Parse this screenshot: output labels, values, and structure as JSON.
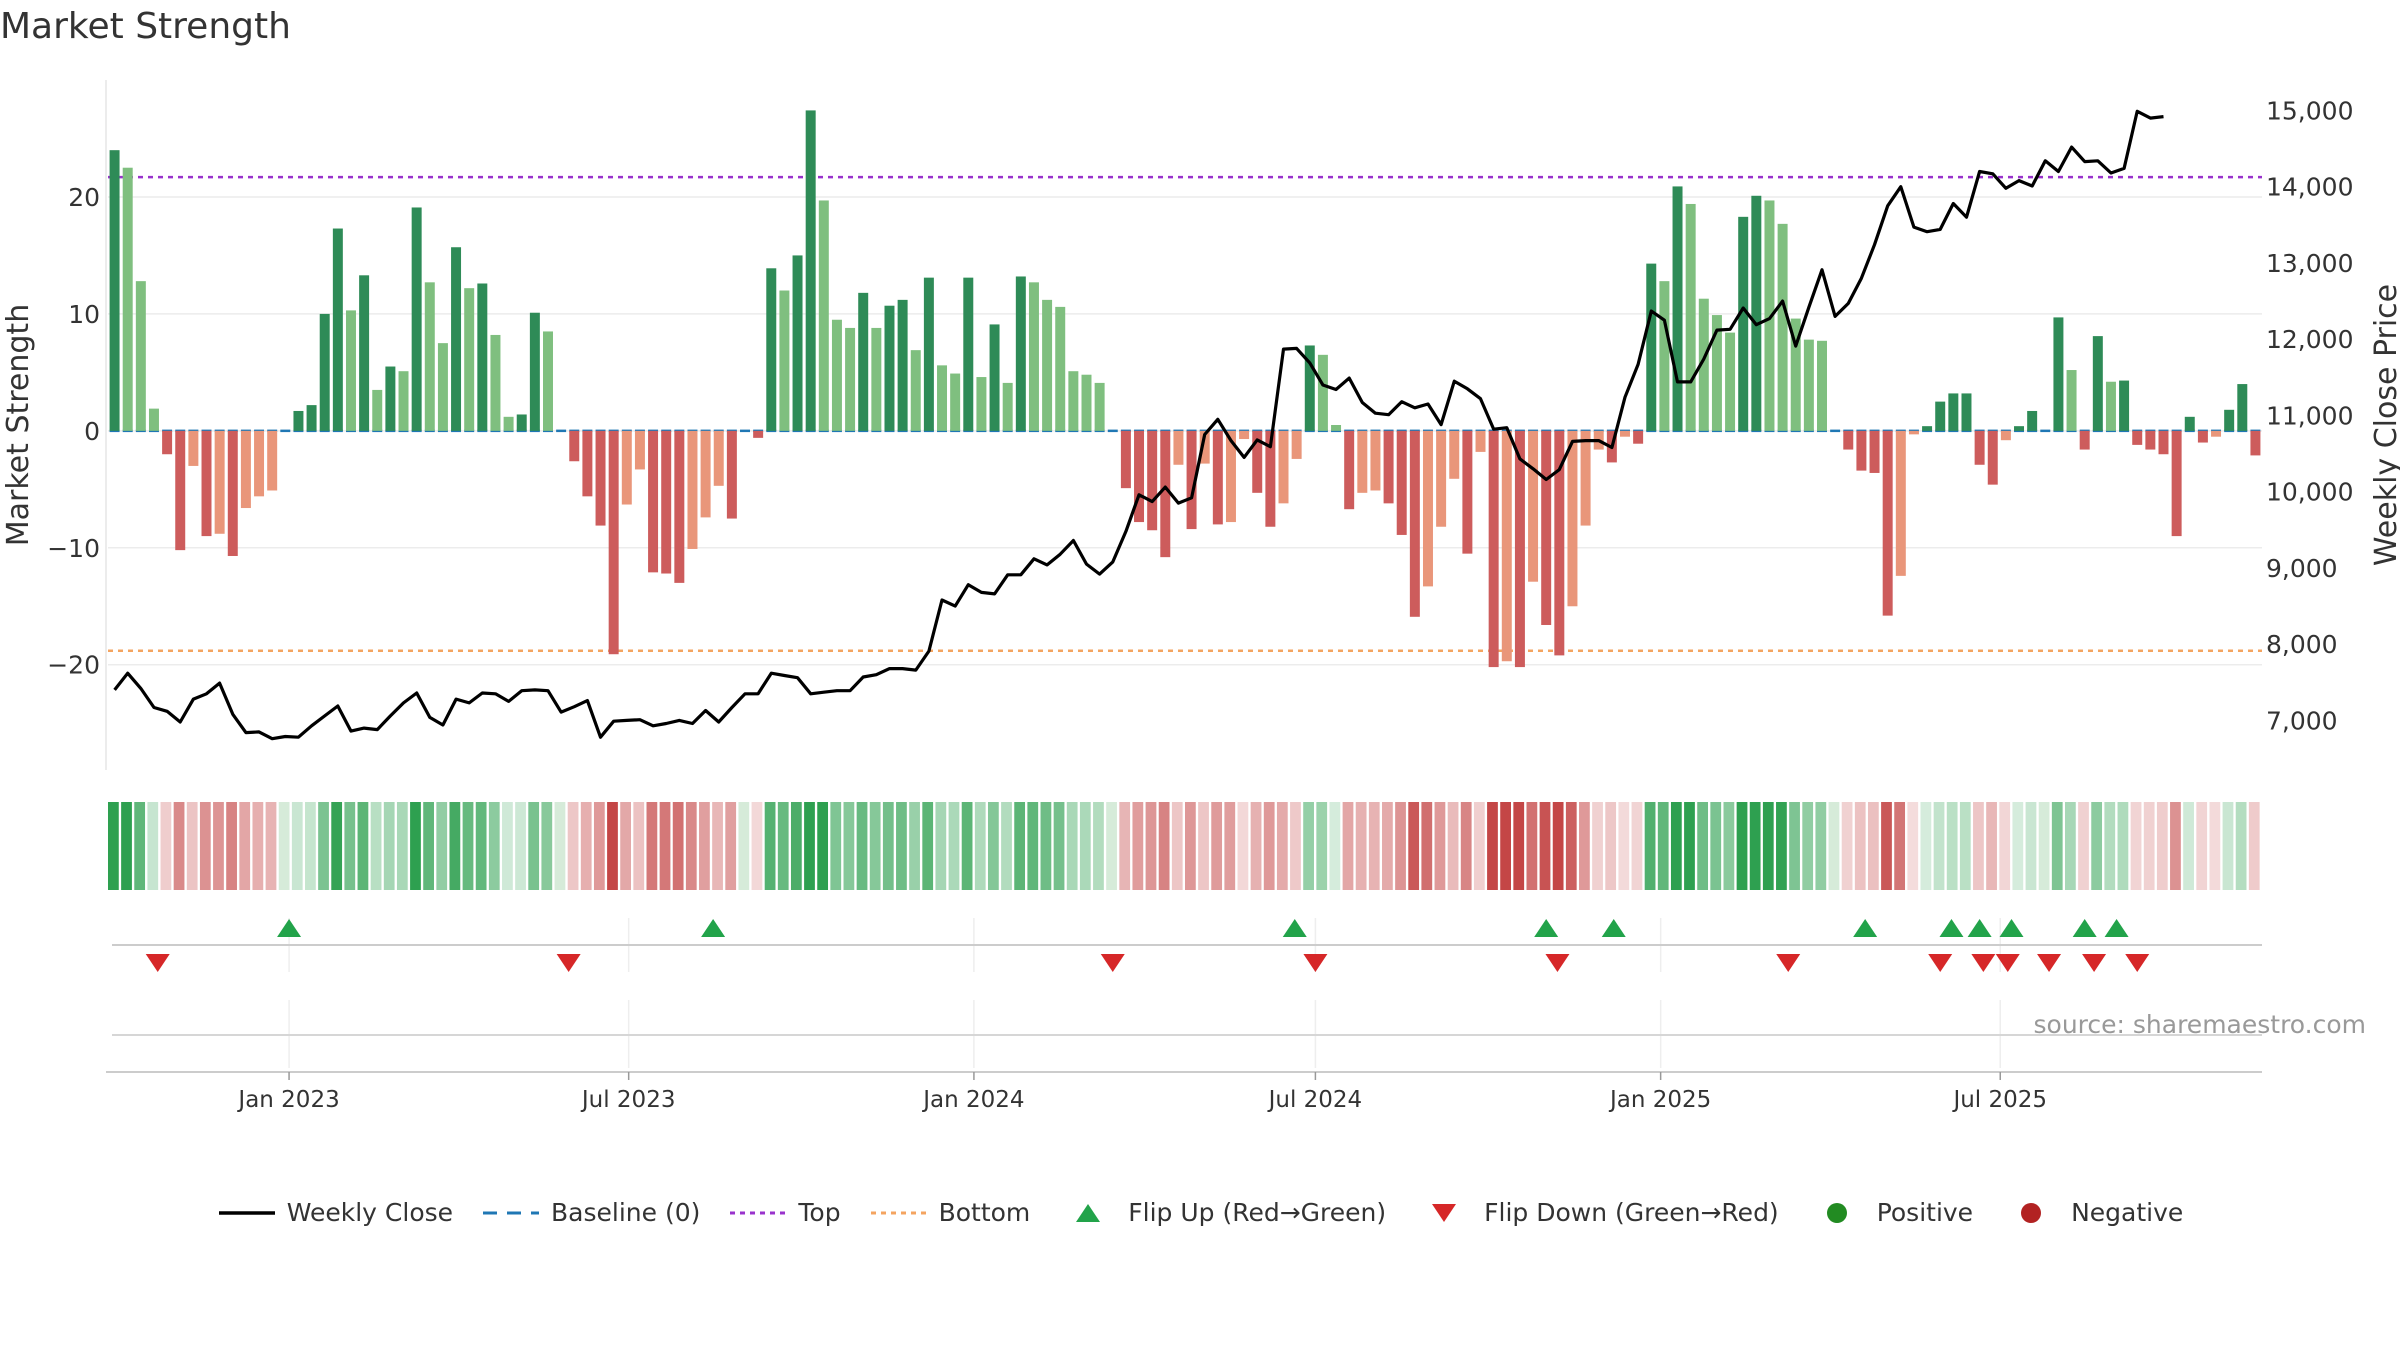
{
  "title": "Market Strength",
  "source": "source: sharemaestro.com",
  "colors": {
    "pos_strong": "#2e8b57",
    "pos_weak": "#7fbf7f",
    "neg_strong": "#cd5c5c",
    "neg_weak": "#e9967a",
    "price": "#000000",
    "baseline": "#1f77b4",
    "top": "#9932cc",
    "bottom": "#f4a460",
    "flip_up": "#22a34a",
    "flip_down": "#d62728",
    "positive": "#228b22",
    "negative": "#b22222"
  },
  "legend": [
    {
      "key": "close",
      "label": "Weekly Close"
    },
    {
      "key": "baseline",
      "label": "Baseline (0)"
    },
    {
      "key": "top",
      "label": "Top"
    },
    {
      "key": "bottom",
      "label": "Bottom"
    },
    {
      "key": "flipup",
      "label": "Flip Up (Red→Green)"
    },
    {
      "key": "flipdown",
      "label": "Flip Down (Green→Red)"
    },
    {
      "key": "positive",
      "label": "Positive"
    },
    {
      "key": "negative",
      "label": "Negative"
    }
  ],
  "chart_data": {
    "type": "bar",
    "title": "Market Strength",
    "ylabel_left": "Market Strength",
    "ylabel_right": "Weekly Close Price",
    "left_ticks": [
      20,
      10,
      0,
      -10,
      -20
    ],
    "left_tick_labels": [
      "20",
      "10",
      "0",
      "−10",
      "−20"
    ],
    "left_ylim": [
      -29,
      30
    ],
    "right_ticks": [
      15000,
      14000,
      13000,
      12000,
      11000,
      10000,
      9000,
      8000,
      7000
    ],
    "right_tick_labels": [
      "15,000",
      "14,000",
      "13,000",
      "12,000",
      "11,000",
      "10,000",
      "9,000",
      "8,000",
      "7,000"
    ],
    "right_ylim": [
      6350,
      15400
    ],
    "x_ticks": [
      "2023-01-01",
      "2023-07-01",
      "2024-01-01",
      "2024-07-01",
      "2025-01-01",
      "2025-07-01"
    ],
    "x_tick_labels": [
      "Jan 2023",
      "Jul 2023",
      "Jan 2024",
      "Jul 2024",
      "Jan 2025",
      "Jul 2025"
    ],
    "start_date": "2022-09-30",
    "top_line": 21.7,
    "bottom_line": -18.8,
    "strength": [
      24,
      22.5,
      12.8,
      1.9,
      -2,
      -10.2,
      -3,
      -9,
      -8.8,
      -10.7,
      -6.6,
      -5.6,
      -5.1,
      0,
      1.7,
      2.2,
      10,
      17.3,
      10.3,
      13.3,
      3.5,
      5.5,
      5.1,
      19.1,
      12.7,
      7.5,
      15.7,
      12.2,
      12.6,
      8.2,
      1.2,
      1.4,
      10.1,
      8.5,
      0,
      -2.6,
      -5.6,
      -8.1,
      -19.1,
      -6.3,
      -3.3,
      -12.1,
      -12.2,
      -13,
      -10.1,
      -7.4,
      -4.7,
      -7.5,
      0,
      -0.6,
      13.9,
      12,
      15,
      27.4,
      19.7,
      9.5,
      8.8,
      11.8,
      8.8,
      10.7,
      11.2,
      6.9,
      13.1,
      5.6,
      4.9,
      13.1,
      4.6,
      9.1,
      4.1,
      13.2,
      12.7,
      11.2,
      10.6,
      5.1,
      4.8,
      4.1,
      0,
      -4.9,
      -7.8,
      -8.5,
      -10.8,
      -2.9,
      -8.4,
      -2.8,
      -8,
      -7.8,
      -0.7,
      -5.3,
      -8.2,
      -6.2,
      -2.4,
      7.3,
      6.5,
      0.5,
      -6.7,
      -5.3,
      -5.1,
      -6.2,
      -8.9,
      -15.9,
      -13.3,
      -8.2,
      -4.1,
      -10.5,
      -1.8,
      -20.2,
      -19.7,
      -20.2,
      -12.9,
      -16.6,
      -19.2,
      -15,
      -8.1,
      -1.6,
      -2.7,
      -0.5,
      -1.1,
      14.3,
      12.8,
      20.9,
      19.4,
      11.3,
      9.9,
      8.4,
      18.3,
      20.1,
      19.7,
      17.7,
      9.6,
      7.8,
      7.7,
      0,
      -1.6,
      -3.4,
      -3.6,
      -15.8,
      -12.4,
      -0.3,
      0.4,
      2.5,
      3.2,
      3.2,
      -2.9,
      -4.6,
      -0.8,
      0.4,
      1.7,
      0,
      9.7,
      5.2,
      -1.6,
      8.1,
      4.2,
      4.3,
      -1.2,
      -1.6,
      -2,
      -9,
      1.2,
      -1,
      -0.5,
      1.8,
      4,
      -2.1
    ],
    "price": [
      7400,
      7620,
      7420,
      7170,
      7120,
      6980,
      7280,
      7350,
      7490,
      7080,
      6840,
      6850,
      6760,
      6790,
      6780,
      6930,
      7060,
      7190,
      6860,
      6900,
      6880,
      7060,
      7230,
      7360,
      7040,
      6940,
      7280,
      7230,
      7360,
      7350,
      7250,
      7390,
      7400,
      7390,
      7110,
      7180,
      7260,
      6780,
      6990,
      7000,
      7010,
      6930,
      6960,
      7000,
      6960,
      7130,
      6980,
      7170,
      7350,
      7350,
      7620,
      7590,
      7560,
      7350,
      7370,
      7390,
      7390,
      7570,
      7600,
      7680,
      7680,
      7660,
      7910,
      8580,
      8500,
      8780,
      8680,
      8660,
      8910,
      8910,
      9120,
      9040,
      9180,
      9360,
      9050,
      8920,
      9080,
      9480,
      9960,
      9870,
      10060,
      9850,
      9920,
      10750,
      10950,
      10670,
      10450,
      10680,
      10590,
      11870,
      11880,
      11690,
      11400,
      11340,
      11490,
      11170,
      11030,
      11010,
      11180,
      11100,
      11150,
      10880,
      11450,
      11350,
      11220,
      10820,
      10840,
      10430,
      10300,
      10160,
      10290,
      10660,
      10670,
      10670,
      10580,
      11240,
      11670,
      12370,
      12250,
      11440,
      11440,
      11740,
      12120,
      12130,
      12410,
      12190,
      12270,
      12500,
      11910,
      12420,
      12910,
      12300,
      12470,
      12800,
      13240,
      13750,
      14000,
      13470,
      13410,
      13440,
      13780,
      13600,
      14200,
      14170,
      13980,
      14080,
      14010,
      14340,
      14200,
      14520,
      14330,
      14340,
      14180,
      14240,
      14990,
      14900,
      14920
    ],
    "flip_up_dates": [
      "2023-01-01",
      "2023-08-15",
      "2024-06-20",
      "2024-11-01",
      "2024-12-07",
      "2025-04-20",
      "2025-06-05",
      "2025-06-20",
      "2025-07-07",
      "2025-08-15",
      "2025-09-01"
    ],
    "flip_down_dates": [
      "2022-10-23",
      "2023-05-30",
      "2024-03-15",
      "2024-07-01",
      "2024-11-07",
      "2025-03-10",
      "2025-05-30",
      "2025-06-22",
      "2025-07-05",
      "2025-07-27",
      "2025-08-20",
      "2025-09-12"
    ]
  }
}
